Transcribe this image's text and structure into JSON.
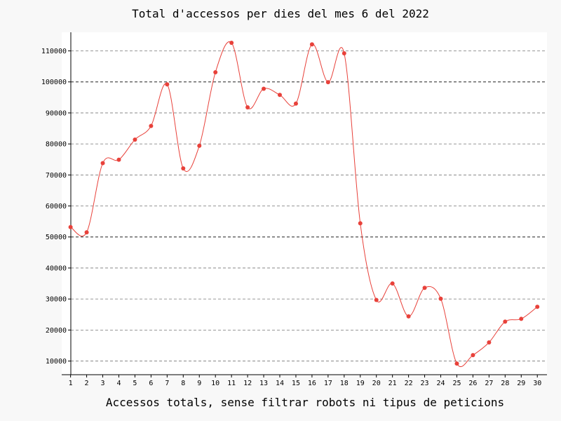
{
  "chart_data": {
    "type": "line",
    "title": "Total d'accessos per dies del mes 6 del 2022",
    "xlabel": "Accessos totals, sense filtrar robots ni tipus de peticions",
    "ylabel": "",
    "x": [
      1,
      2,
      3,
      4,
      5,
      6,
      7,
      8,
      9,
      10,
      11,
      12,
      13,
      14,
      15,
      16,
      17,
      18,
      19,
      20,
      21,
      22,
      23,
      24,
      25,
      26,
      27,
      28,
      29,
      30
    ],
    "series": [
      {
        "values": [
          53200,
          51500,
          73800,
          74900,
          81400,
          85800,
          99200,
          72100,
          79400,
          103100,
          112600,
          91800,
          97800,
          95800,
          93000,
          112100,
          99900,
          109200,
          54400,
          29700,
          35000,
          24400,
          33600,
          30100,
          9200,
          11900,
          16000,
          22700,
          23600,
          27500
        ],
        "color": "#e8413a"
      }
    ],
    "yticks": [
      10000,
      20000,
      30000,
      40000,
      50000,
      60000,
      70000,
      80000,
      90000,
      100000,
      110000
    ],
    "ytick_labels": [
      "10000",
      "20000",
      "30000",
      "40000",
      "50000",
      "60000",
      "70000",
      "80000",
      "90000",
      "100000",
      "110000"
    ],
    "xtick_labels": [
      "1",
      "2",
      "3",
      "4",
      "5",
      "6",
      "7",
      "8",
      "9",
      "10",
      "11",
      "12",
      "13",
      "14",
      "15",
      "16",
      "17",
      "18",
      "19",
      "20",
      "21",
      "22",
      "23",
      "24",
      "25",
      "26",
      "27",
      "28",
      "29",
      "30"
    ],
    "ylim": [
      5600,
      116000
    ],
    "xlim": [
      0.45,
      30.6
    ],
    "grid": "horizontal dashed",
    "emphasized_gridlines": [
      50000,
      100000
    ],
    "colors": {
      "line": "#e8413a",
      "point": "#e8413a",
      "grid": "#777777",
      "plot_bg": "#ffffff",
      "page_bg": "#f8f8f8"
    }
  }
}
